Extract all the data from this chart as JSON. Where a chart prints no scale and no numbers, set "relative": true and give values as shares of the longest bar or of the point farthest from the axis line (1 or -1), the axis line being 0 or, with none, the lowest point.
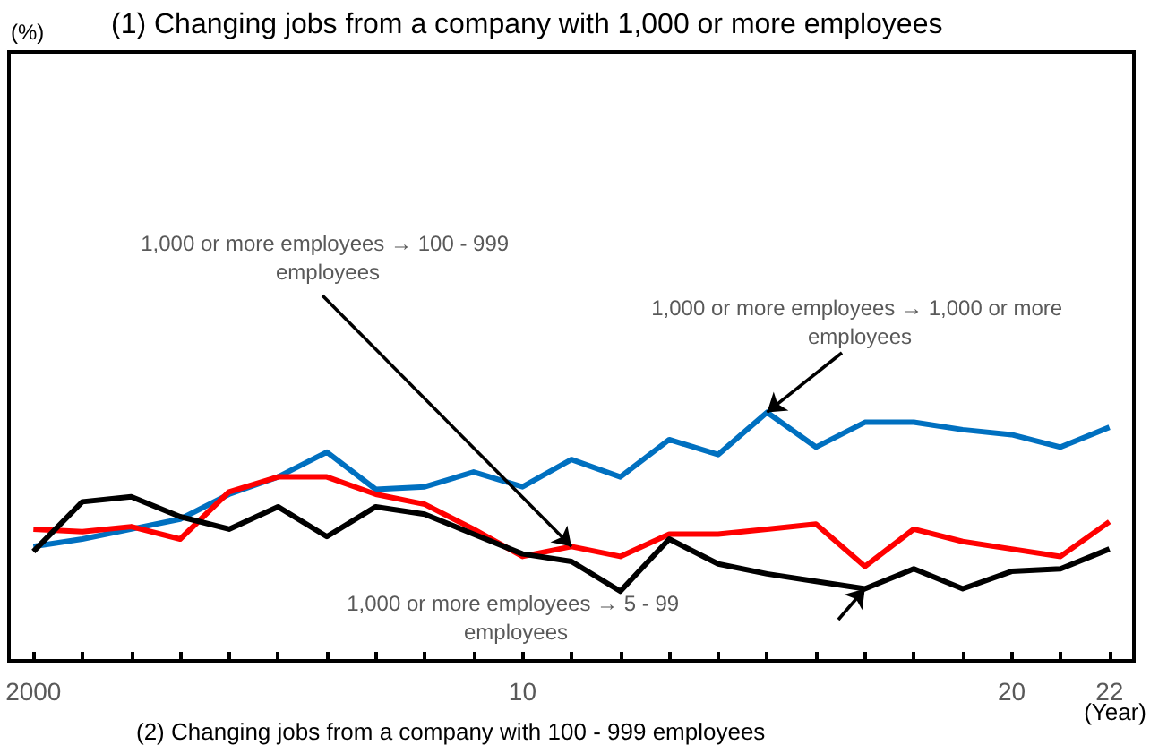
{
  "chart_data": {
    "type": "line",
    "title": "(1) Changing jobs from a company with 1,000 or more employees",
    "xlabel": "(Year)",
    "relative": true,
    "marker": "none",
    "x": [
      2000,
      2001,
      2002,
      2003,
      2004,
      2005,
      2006,
      2007,
      2008,
      2009,
      2010,
      2011,
      2012,
      2013,
      2014,
      2015,
      2016,
      2017,
      2018,
      2019,
      2020,
      2021,
      2022
    ],
    "xlim": [
      1999.5,
      2022.5
    ],
    "xticks": [
      {
        "value": 2000,
        "label": "2000"
      },
      {
        "value": 2001,
        "label": null
      },
      {
        "value": 2002,
        "label": null
      },
      {
        "value": 2003,
        "label": null
      },
      {
        "value": 2004,
        "label": null
      },
      {
        "value": 2005,
        "label": null
      },
      {
        "value": 2006,
        "label": null
      },
      {
        "value": 2007,
        "label": null
      },
      {
        "value": 2008,
        "label": null
      },
      {
        "value": 2009,
        "label": null
      },
      {
        "value": 2010,
        "label": "10"
      },
      {
        "value": 2011,
        "label": null
      },
      {
        "value": 2012,
        "label": null
      },
      {
        "value": 2013,
        "label": null
      },
      {
        "value": 2014,
        "label": null
      },
      {
        "value": 2015,
        "label": null
      },
      {
        "value": 2016,
        "label": null
      },
      {
        "value": 2017,
        "label": null
      },
      {
        "value": 2018,
        "label": null
      },
      {
        "value": 2019,
        "label": null
      },
      {
        "value": 2020,
        "label": "20"
      },
      {
        "value": 2021,
        "label": null
      },
      {
        "value": 2022,
        "label": "22"
      }
    ],
    "series": [
      {
        "name": "1,000 or more employees → 1,000 or more employees",
        "color": "#0070c0",
        "values": [
          0.46,
          0.49,
          0.53,
          0.57,
          0.67,
          0.74,
          0.84,
          0.69,
          0.7,
          0.76,
          0.7,
          0.81,
          0.74,
          0.89,
          0.83,
          1,
          0.86,
          0.96,
          0.96,
          0.93,
          0.91,
          0.86,
          0.94
        ]
      },
      {
        "name": "1,000 or more employees → 100 - 999 employees",
        "color": "#ff0000",
        "values": [
          0.53,
          0.52,
          0.54,
          0.49,
          0.68,
          0.74,
          0.74,
          0.67,
          0.63,
          0.53,
          0.42,
          0.46,
          0.42,
          0.51,
          0.51,
          0.53,
          0.55,
          0.38,
          0.53,
          0.48,
          0.45,
          0.42,
          0.56
        ]
      },
      {
        "name": "1,000 or more employees → 5 - 99 employees",
        "color": "#000000",
        "values": [
          0.44,
          0.64,
          0.66,
          0.58,
          0.53,
          0.62,
          0.5,
          0.62,
          0.59,
          0.51,
          0.43,
          0.4,
          0.28,
          0.49,
          0.39,
          0.35,
          0.32,
          0.29,
          0.37,
          0.29,
          0.36,
          0.37,
          0.45
        ]
      }
    ],
    "annotations": [
      "(%)",
      "(2) Changing jobs from a company with 100 - 999 employees"
    ]
  }
}
